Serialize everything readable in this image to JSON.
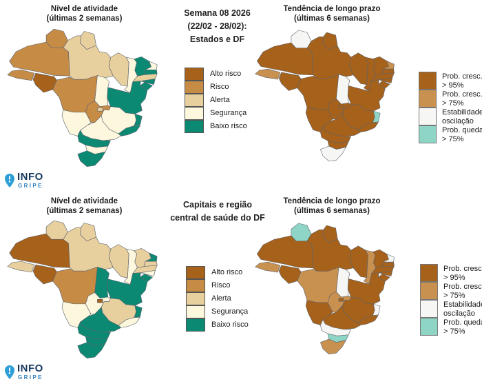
{
  "palettes": {
    "activity": {
      "alto": "#a6611a",
      "risco": "#c68c46",
      "alerta": "#e8cf9e",
      "seguranca": "#fdf8dd",
      "baixo": "#0c8973"
    },
    "tendency": {
      "cresc95": "#a6611a",
      "cresc75": "#c9914f",
      "estab": "#f6f6f4",
      "queda": "#8ed5c6"
    }
  },
  "sections": [
    {
      "center_title_lines": [
        "Semana 08 2026",
        "(22/02 - 28/02):",
        "Estados e DF"
      ]
    },
    {
      "center_title_lines": [
        "Capitais e região",
        "central de saúde do DF"
      ]
    }
  ],
  "maps": [
    {
      "id": "activity-states",
      "title_lines": [
        "Nível de atividade",
        "(últimas 2 semanas)"
      ],
      "palette": "activity",
      "state_fills": {
        "RR": "risco",
        "AP": "alerta",
        "AM": "risco",
        "PA": "alerta",
        "AC": "risco",
        "RO": "alto",
        "MT": "risco",
        "TO": "seguranca",
        "MA": "alerta",
        "PI": "seguranca",
        "CE": "baixo",
        "RN": "seguranca",
        "PB": "baixo",
        "PE": "alerta",
        "AL": "baixo",
        "SE": "baixo",
        "BA": "baixo",
        "GO": "risco",
        "DF": "alerta",
        "MG": "seguranca",
        "ES": "baixo",
        "RJ": "baixo",
        "SP": "seguranca",
        "MS": "seguranca",
        "PR": "baixo",
        "SC": "seguranca",
        "RS": "baixo"
      }
    },
    {
      "id": "tendency-states",
      "title_lines": [
        "Tendência de longo prazo",
        "(últimas 6 semanas)"
      ],
      "palette": "tendency",
      "state_fills": {
        "RR": "estab",
        "AP": "cresc95",
        "AM": "cresc95",
        "PA": "cresc95",
        "AC": "cresc75",
        "RO": "cresc95",
        "MT": "cresc95",
        "TO": "estab",
        "MA": "cresc95",
        "PI": "cresc95",
        "CE": "cresc95",
        "RN": "cresc75",
        "PB": "cresc95",
        "PE": "cresc95",
        "AL": "cresc95",
        "SE": "cresc95",
        "BA": "cresc95",
        "GO": "cresc95",
        "DF": "cresc95",
        "MG": "cresc95",
        "ES": "queda",
        "RJ": "cresc95",
        "SP": "cresc95",
        "MS": "cresc95",
        "PR": "cresc95",
        "SC": "cresc95",
        "RS": "estab"
      }
    },
    {
      "id": "activity-capitals",
      "title_lines": [
        "Nível de atividade",
        "(últimas 2 semanas)"
      ],
      "palette": "activity",
      "state_fills": {
        "RR": "alerta",
        "AP": "alerta",
        "AM": "alto",
        "PA": "alerta",
        "AC": "alerta",
        "RO": "alto",
        "MT": "risco",
        "TO": "baixo",
        "MA": "alerta",
        "PI": "seguranca",
        "CE": "alerta",
        "RN": "baixo",
        "PB": "alerta",
        "PE": "alerta",
        "AL": "seguranca",
        "SE": "baixo",
        "BA": "baixo",
        "GO": "seguranca",
        "DF": "alto",
        "MG": "alerta",
        "ES": "baixo",
        "RJ": "seguranca",
        "SP": "baixo",
        "MS": "seguranca",
        "PR": "baixo",
        "SC": "baixo",
        "RS": "baixo"
      }
    },
    {
      "id": "tendency-capitals",
      "title_lines": [
        "Tendência de longo prazo",
        "(últimas 6 semanas)"
      ],
      "palette": "tendency",
      "state_fills": {
        "RR": "queda",
        "AP": "cresc95",
        "AM": "cresc95",
        "PA": "cresc95",
        "AC": "cresc75",
        "RO": "cresc95",
        "MT": "cresc75",
        "TO": "estab",
        "MA": "cresc95",
        "PI": "cresc75",
        "CE": "cresc95",
        "RN": "estab",
        "PB": "cresc95",
        "PE": "cresc95",
        "AL": "cresc95",
        "SE": "cresc95",
        "BA": "cresc95",
        "GO": "cresc75",
        "DF": "cresc95",
        "MG": "cresc95",
        "ES": "estab",
        "RJ": "cresc95",
        "SP": "cresc95",
        "MS": "cresc95",
        "PR": "estab",
        "SC": "queda",
        "RS": "cresc75"
      }
    }
  ],
  "legends": {
    "activity": {
      "items": [
        {
          "key": "alto",
          "label": "Alto risco"
        },
        {
          "key": "risco",
          "label": "Risco"
        },
        {
          "key": "alerta",
          "label": "Alerta"
        },
        {
          "key": "seguranca",
          "label": "Segurança"
        },
        {
          "key": "baixo",
          "label": "Baixo risco"
        }
      ]
    },
    "tendency": {
      "items": [
        {
          "key": "cresc95",
          "label_lines": [
            "Prob. cresc.",
            "> 95%"
          ]
        },
        {
          "key": "cresc75",
          "label_lines": [
            "Prob. cresc.",
            "> 75%"
          ]
        },
        {
          "key": "estab",
          "label_lines": [
            "Estabilidade./",
            "oscilação"
          ]
        },
        {
          "key": "queda",
          "label_lines": [
            "Prob. queda",
            "> 75%"
          ]
        }
      ]
    }
  },
  "logo": {
    "info": "INFO",
    "gripe": "GRIPE"
  }
}
